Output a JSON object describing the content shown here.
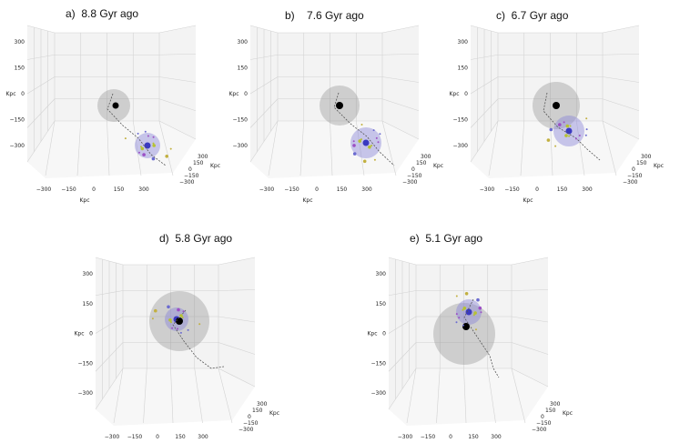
{
  "figure": {
    "panels": [
      {
        "letter": "a)",
        "age": "8.8 Gyr ago"
      },
      {
        "letter": "b)",
        "age": "7.6 Gyr ago"
      },
      {
        "letter": "c)",
        "age": "6.7 Gyr ago"
      },
      {
        "letter": "d)",
        "age": "5.8 Gyr ago"
      },
      {
        "letter": "e)",
        "age": "5.1 Gyr ago"
      }
    ]
  },
  "chart_data": [
    {
      "type": "scatter",
      "subtype": "3d-scatter",
      "title": "a) 8.8 Gyr ago",
      "xlabel": "Kpc",
      "ylabel": "Kpc",
      "zlabel": "Kpc",
      "x_ticks": [
        "−300",
        "−150",
        "0",
        "150",
        "300"
      ],
      "y_ticks": [
        "−300",
        "−150",
        "0",
        "150",
        "300"
      ],
      "z_ticks": [
        "300",
        "150",
        "0",
        "−150",
        "−300"
      ],
      "legend": []
    },
    {
      "type": "scatter",
      "subtype": "3d-scatter",
      "title": "b) 7.6 Gyr ago",
      "xlabel": "Kpc",
      "ylabel": "Kpc",
      "zlabel": "Kpc",
      "x_ticks": [
        "−300",
        "−150",
        "0",
        "150",
        "300"
      ],
      "y_ticks": [
        "−300",
        "−150",
        "0",
        "150",
        "300"
      ],
      "z_ticks": [
        "300",
        "150",
        "0",
        "−150",
        "−300"
      ],
      "legend": []
    },
    {
      "type": "scatter",
      "subtype": "3d-scatter",
      "title": "c) 6.7 Gyr ago",
      "xlabel": "Kpc",
      "ylabel": "Kpc",
      "zlabel": "Kpc",
      "x_ticks": [
        "−300",
        "−150",
        "0",
        "150",
        "300"
      ],
      "y_ticks": [
        "−300",
        "−150",
        "0",
        "150",
        "300"
      ],
      "z_ticks": [
        "300",
        "150",
        "0",
        "−150",
        "−300"
      ],
      "legend": []
    },
    {
      "type": "scatter",
      "subtype": "3d-scatter",
      "title": "d) 5.8 Gyr ago",
      "xlabel": "Kpc",
      "ylabel": "Kpc",
      "zlabel": "Kpc",
      "x_ticks": [
        "−300",
        "−150",
        "0",
        "150",
        "300"
      ],
      "y_ticks": [
        "−300",
        "−150",
        "0",
        "150",
        "300"
      ],
      "z_ticks": [
        "300",
        "150",
        "0",
        "−150",
        "−300"
      ],
      "legend": []
    },
    {
      "type": "scatter",
      "subtype": "3d-scatter",
      "title": "e) 5.1 Gyr ago",
      "xlabel": "Kpc",
      "ylabel": "Kpc",
      "zlabel": "Kpc",
      "x_ticks": [
        "−300",
        "−150",
        "0",
        "150",
        "300"
      ],
      "y_ticks": [
        "−300",
        "−150",
        "0",
        "150",
        "300"
      ],
      "z_ticks": [
        "300",
        "150",
        "0",
        "−150",
        "−300"
      ],
      "legend": []
    }
  ]
}
